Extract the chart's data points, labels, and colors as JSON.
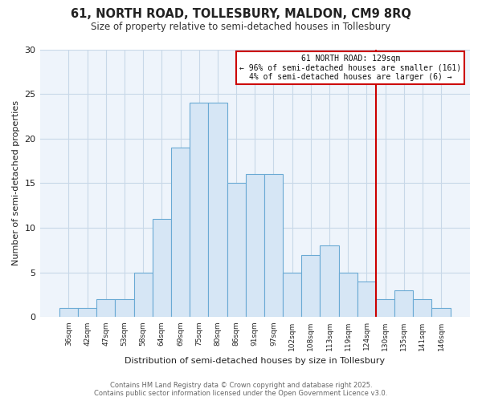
{
  "title": "61, NORTH ROAD, TOLLESBURY, MALDON, CM9 8RQ",
  "subtitle": "Size of property relative to semi-detached houses in Tollesbury",
  "xlabel": "Distribution of semi-detached houses by size in Tollesbury",
  "ylabel": "Number of semi-detached properties",
  "bin_labels": [
    "36sqm",
    "42sqm",
    "47sqm",
    "53sqm",
    "58sqm",
    "64sqm",
    "69sqm",
    "75sqm",
    "80sqm",
    "86sqm",
    "91sqm",
    "97sqm",
    "102sqm",
    "108sqm",
    "113sqm",
    "119sqm",
    "124sqm",
    "130sqm",
    "135sqm",
    "141sqm",
    "146sqm"
  ],
  "bin_counts": [
    1,
    1,
    2,
    2,
    5,
    11,
    19,
    24,
    24,
    15,
    16,
    16,
    5,
    7,
    8,
    5,
    4,
    2,
    3,
    2,
    1
  ],
  "bar_color": "#d6e6f5",
  "bar_edge_color": "#6aaad4",
  "vline_color": "#cc0000",
  "vline_bin_index": 17,
  "annotation_title": "61 NORTH ROAD: 129sqm",
  "annotation_line1": "← 96% of semi-detached houses are smaller (161)",
  "annotation_line2": "4% of semi-detached houses are larger (6) →",
  "annotation_box_color": "#cc0000",
  "ylim": [
    0,
    30
  ],
  "yticks": [
    0,
    5,
    10,
    15,
    20,
    25,
    30
  ],
  "footer1": "Contains HM Land Registry data © Crown copyright and database right 2025.",
  "footer2": "Contains public sector information licensed under the Open Government Licence v3.0.",
  "background_color": "#ffffff",
  "plot_bg_color": "#eef4fb",
  "grid_color": "#c8d8e8"
}
